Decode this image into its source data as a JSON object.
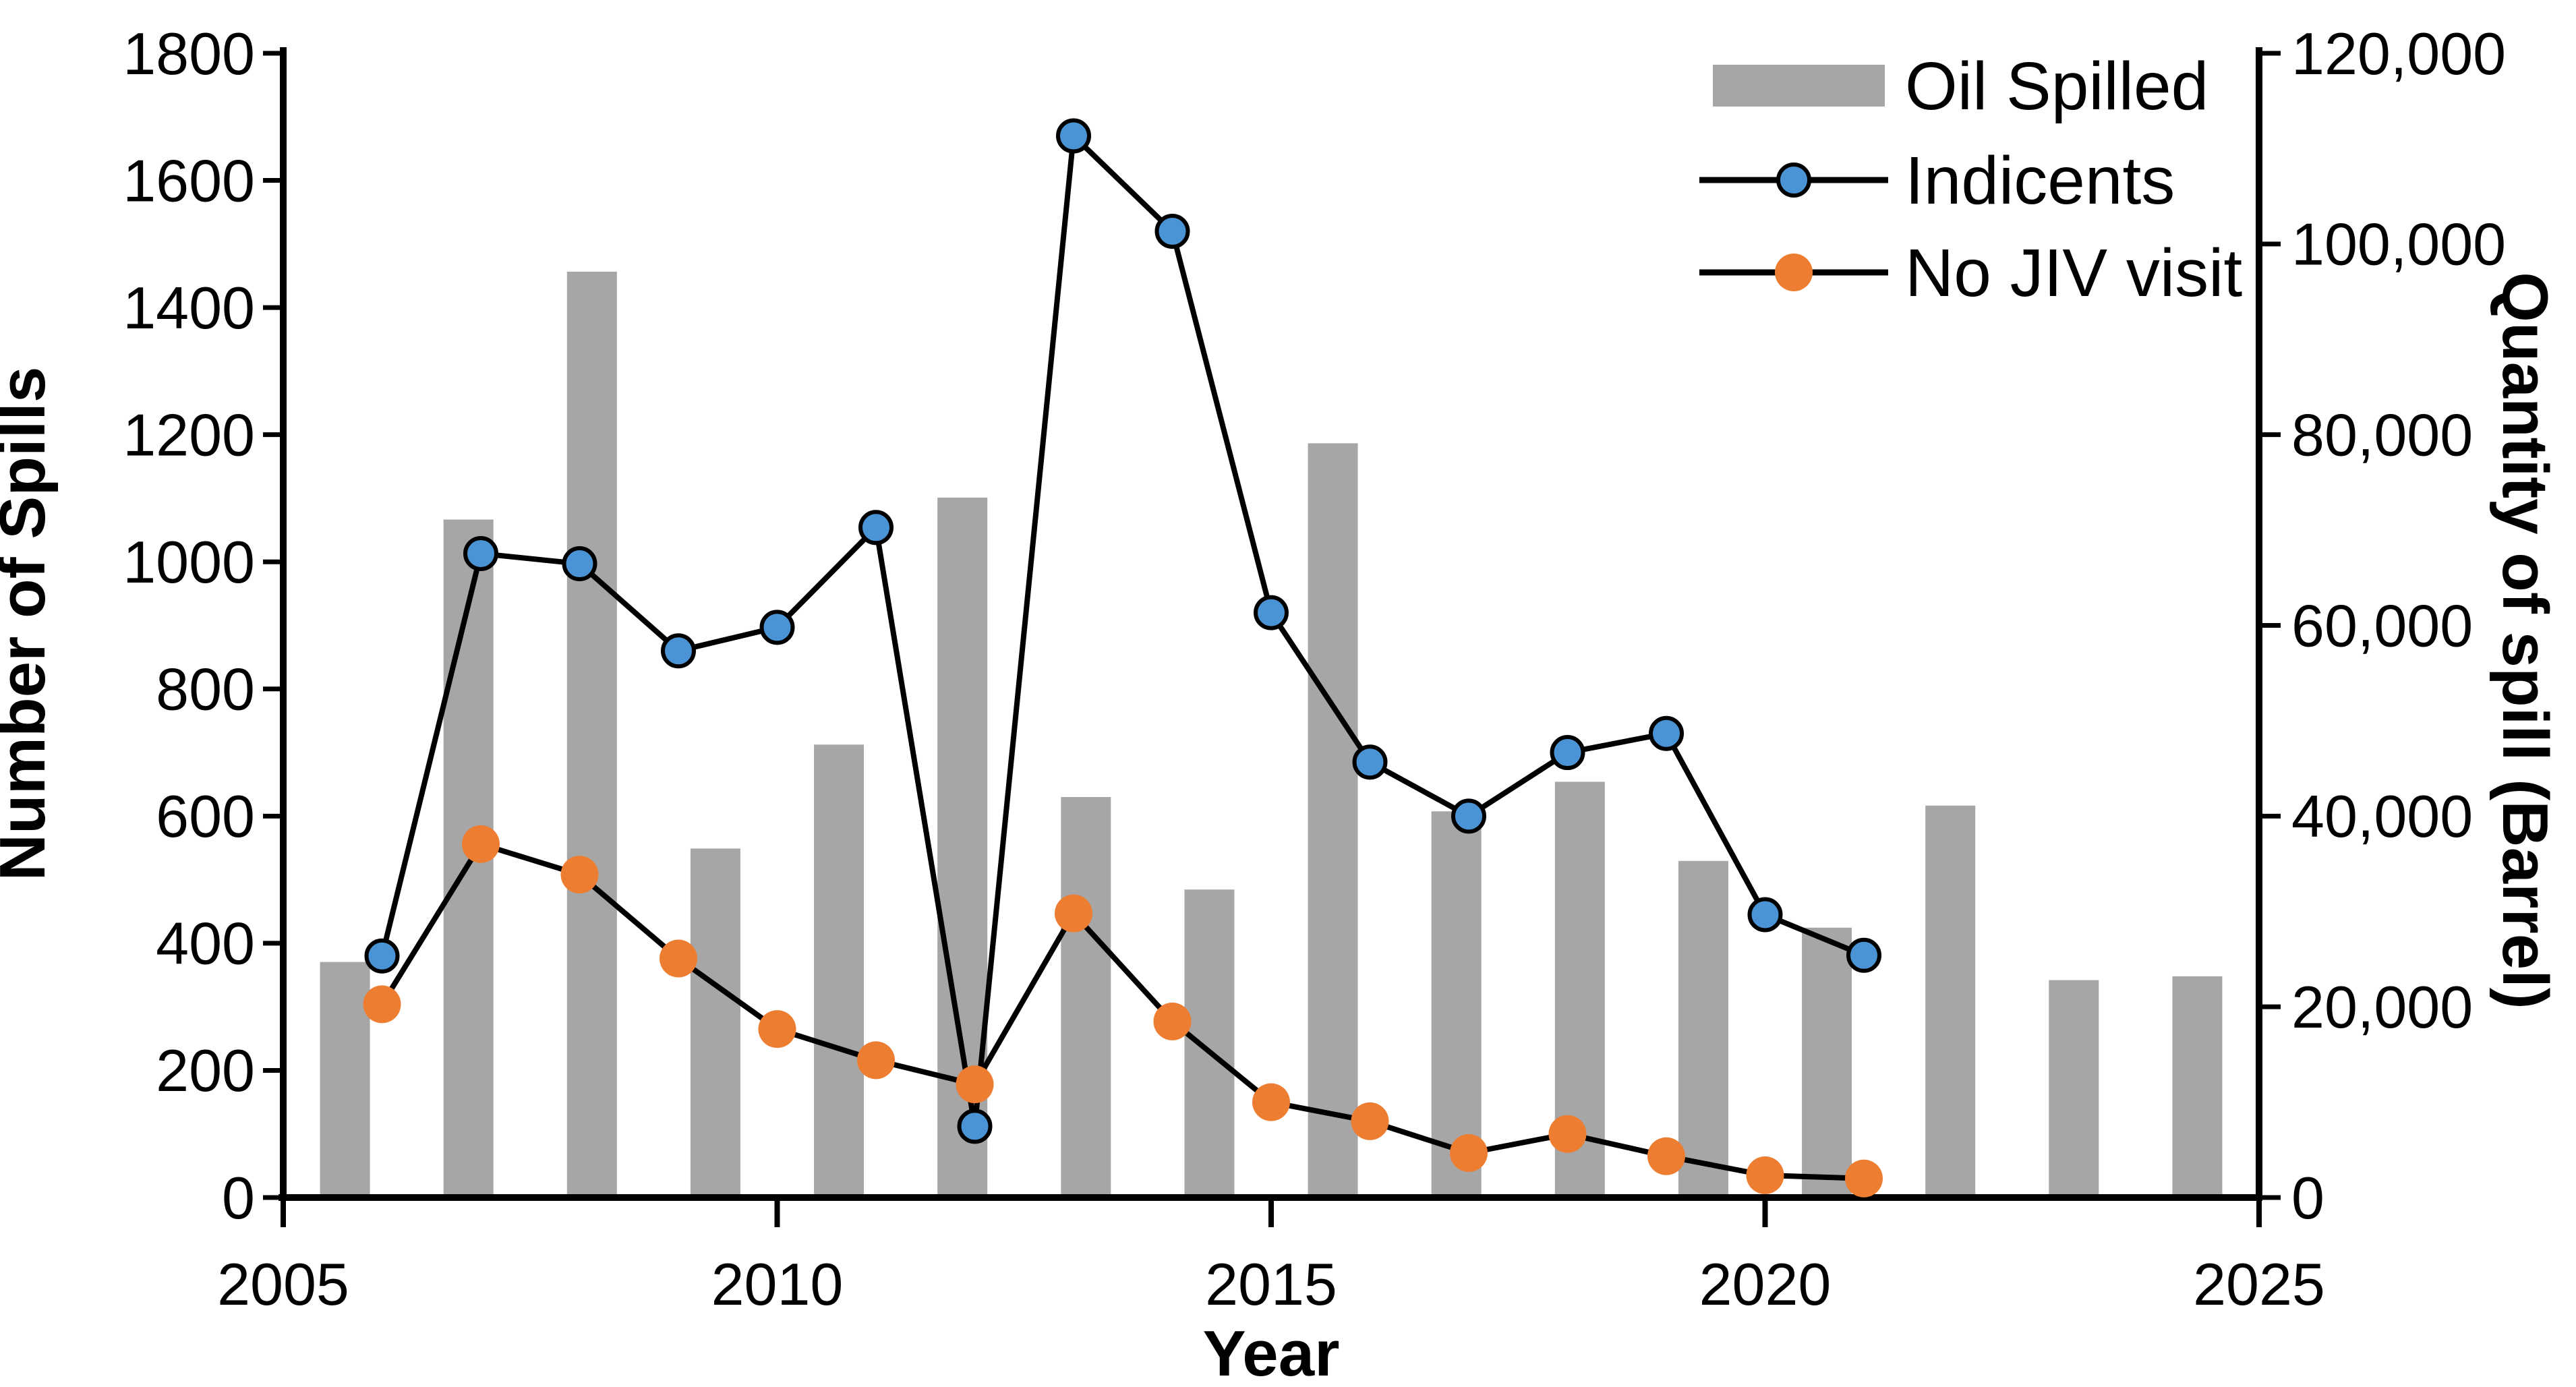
{
  "chart_data": {
    "type": "combo",
    "title": "",
    "x_axis": {
      "label": "Year",
      "min": 2005,
      "max": 2025,
      "tick_labels": [
        "2005",
        "2010",
        "2015",
        "2020",
        "2025"
      ]
    },
    "y_left_axis": {
      "label": "Number of  Spills",
      "min": 0,
      "max": 1800,
      "step": 200,
      "tick_labels": [
        "0",
        "200",
        "400",
        "600",
        "800",
        "1000",
        "1200",
        "1400",
        "1600",
        "1800"
      ]
    },
    "y_right_axis": {
      "label": "Quantity of spill (Barrel)",
      "min": 0,
      "max": 120000,
      "step": 20000,
      "tick_labels": [
        "0",
        "20,000",
        "40,000",
        "60,000",
        "80,000",
        "100,000",
        "120,000"
      ]
    },
    "years": [
      2006,
      2007,
      2008,
      2009,
      2010,
      2011,
      2012,
      2013,
      2014,
      2015,
      2016,
      2017,
      2018,
      2019,
      2020,
      2021
    ],
    "series": [
      {
        "name": "Oil Spilled",
        "type": "bar",
        "axis": "right",
        "color": "#A6A6A6",
        "values": [
          24700,
          71100,
          97100,
          36600,
          47500,
          73400,
          42000,
          32300,
          79100,
          40500,
          43600,
          35300,
          28300,
          41100,
          22800,
          23200
        ]
      },
      {
        "name": "Indicents",
        "type": "line",
        "axis": "left",
        "line_color": "#000000",
        "marker_color": "#4A94D5",
        "marker_outline": "#000000",
        "values": [
          380,
          1013,
          997,
          860,
          897,
          1054,
          112,
          1670,
          1520,
          920,
          685,
          600,
          700,
          730,
          445,
          381
        ]
      },
      {
        "name": "No JIV visit",
        "type": "line",
        "axis": "left",
        "line_color": "#000000",
        "marker_color": "#ED7D31",
        "values": [
          304,
          556,
          508,
          376,
          265,
          216,
          178,
          447,
          277,
          150,
          120,
          70,
          100,
          65,
          35,
          30
        ]
      }
    ],
    "legend": {
      "position": "top-right",
      "entries": [
        "Oil Spilled",
        "Indicents",
        "No JIV visit"
      ]
    },
    "layout_hints": {
      "grid": "off",
      "bar_placement": "16 equal category slots spanning full plot width (bars drift right of line markers)",
      "line_placement": "true year positions on 2005-2025 linear axis"
    }
  }
}
